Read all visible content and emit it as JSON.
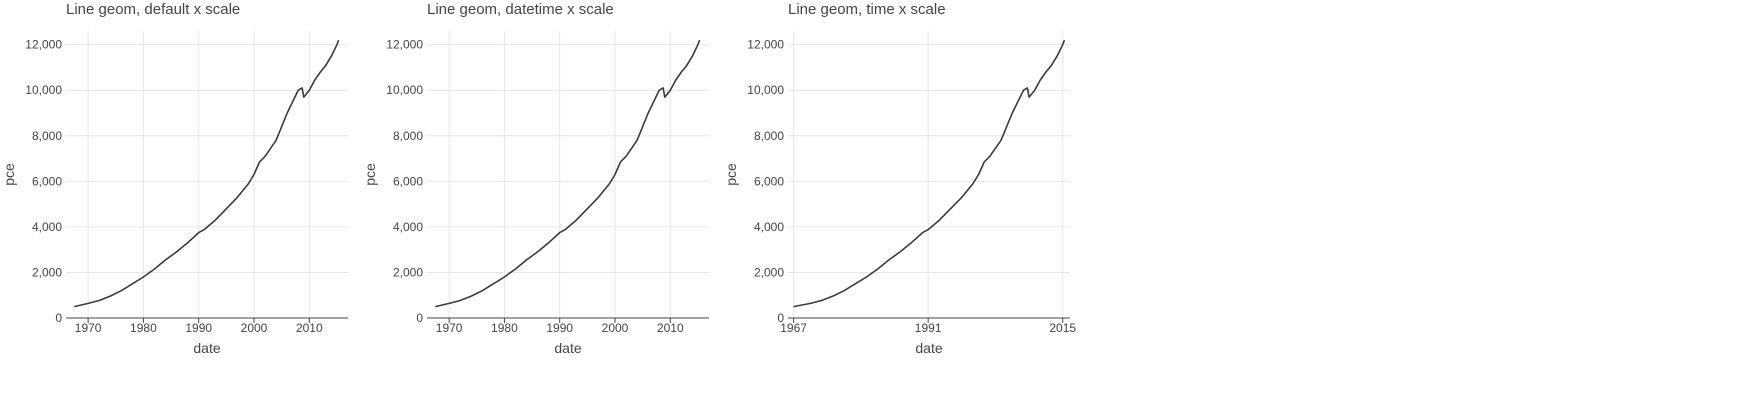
{
  "chart_data": [
    {
      "type": "line",
      "title": "Line geom, default x scale",
      "xlabel": "date",
      "ylabel": "pce",
      "xlim": [
        1966,
        2017
      ],
      "ylim": [
        0,
        12600
      ],
      "x_ticks": [
        1970,
        1980,
        1990,
        2000,
        2010
      ],
      "x_tick_labels": [
        "1970",
        "1980",
        "1990",
        "2000",
        "2010"
      ],
      "y_ticks": [
        0,
        2000,
        4000,
        6000,
        8000,
        10000,
        12000
      ],
      "y_tick_labels": [
        "0",
        "2,000",
        "4,000",
        "6,000",
        "8,000",
        "10,000",
        "12,000"
      ],
      "grid": true,
      "series": [
        {
          "x": [
            1967.5,
            1970,
            1972,
            1974,
            1976,
            1978,
            1980,
            1982,
            1984,
            1986,
            1988,
            1990,
            1991,
            1993,
            1995,
            1997,
            1999,
            2000,
            2001,
            2002,
            2004,
            2006,
            2007,
            2008,
            2008.7,
            2009,
            2010,
            2011,
            2012,
            2013,
            2014,
            2015,
            2015.3
          ],
          "y": [
            500,
            640,
            770,
            960,
            1200,
            1500,
            1800,
            2150,
            2550,
            2900,
            3300,
            3750,
            3880,
            4300,
            4800,
            5300,
            5900,
            6300,
            6850,
            7100,
            7800,
            9000,
            9500,
            10000,
            10100,
            9700,
            10000,
            10450,
            10800,
            11100,
            11500,
            12000,
            12200
          ]
        }
      ]
    },
    {
      "type": "line",
      "title": "Line geom, datetime x scale",
      "xlabel": "date",
      "ylabel": "pce",
      "xlim": [
        1966,
        2017
      ],
      "ylim": [
        0,
        12600
      ],
      "x_ticks": [
        1970,
        1980,
        1990,
        2000,
        2010
      ],
      "x_tick_labels": [
        "1970",
        "1980",
        "1990",
        "2000",
        "2010"
      ],
      "y_ticks": [
        0,
        2000,
        4000,
        6000,
        8000,
        10000,
        12000
      ],
      "y_tick_labels": [
        "0",
        "2,000",
        "4,000",
        "6,000",
        "8,000",
        "10,000",
        "12,000"
      ],
      "grid": true,
      "series": [
        {
          "x": [
            1967.5,
            1970,
            1972,
            1974,
            1976,
            1978,
            1980,
            1982,
            1984,
            1986,
            1988,
            1990,
            1991,
            1993,
            1995,
            1997,
            1999,
            2000,
            2001,
            2002,
            2004,
            2006,
            2007,
            2008,
            2008.7,
            2009,
            2010,
            2011,
            2012,
            2013,
            2014,
            2015,
            2015.3
          ],
          "y": [
            500,
            640,
            770,
            960,
            1200,
            1500,
            1800,
            2150,
            2550,
            2900,
            3300,
            3750,
            3880,
            4300,
            4800,
            5300,
            5900,
            6300,
            6850,
            7100,
            7800,
            9000,
            9500,
            10000,
            10100,
            9700,
            10000,
            10450,
            10800,
            11100,
            11500,
            12000,
            12200
          ]
        }
      ]
    },
    {
      "type": "line",
      "title": "Line geom, time x scale",
      "xlabel": "date",
      "ylabel": "pce",
      "xlim": [
        1966,
        2016.3
      ],
      "ylim": [
        0,
        12600
      ],
      "x_ticks": [
        1967,
        1991,
        2015
      ],
      "x_tick_labels": [
        "1967",
        "1991",
        "2015"
      ],
      "y_ticks": [
        0,
        2000,
        4000,
        6000,
        8000,
        10000,
        12000
      ],
      "y_tick_labels": [
        "0",
        "2,000",
        "4,000",
        "6,000",
        "8,000",
        "10,000",
        "12,000"
      ],
      "grid": true,
      "series": [
        {
          "x": [
            1967,
            1970,
            1972,
            1974,
            1976,
            1978,
            1980,
            1982,
            1984,
            1986,
            1988,
            1990,
            1991,
            1993,
            1995,
            1997,
            1999,
            2000,
            2001,
            2002,
            2004,
            2006,
            2007,
            2008,
            2008.7,
            2009,
            2010,
            2011,
            2012,
            2013,
            2014,
            2015,
            2015.3
          ],
          "y": [
            500,
            640,
            770,
            960,
            1200,
            1500,
            1800,
            2150,
            2550,
            2900,
            3300,
            3750,
            3880,
            4300,
            4800,
            5300,
            5900,
            6300,
            6850,
            7100,
            7800,
            9000,
            9500,
            10000,
            10100,
            9700,
            10000,
            10450,
            10800,
            11100,
            11500,
            12000,
            12200
          ]
        }
      ]
    }
  ]
}
